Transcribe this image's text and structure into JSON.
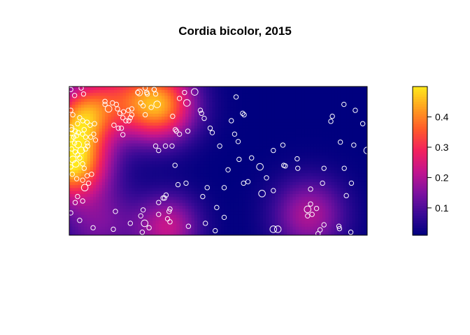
{
  "chart_data": {
    "type": "heatmap",
    "title": "Cordia bicolor, 2015",
    "xlabel": "",
    "ylabel": "",
    "xlim": [
      0,
      1000
    ],
    "ylim": [
      0,
      500
    ],
    "colorbar": {
      "range": [
        0.01,
        0.5
      ],
      "ticks": [
        0.1,
        0.2,
        0.3,
        0.4
      ],
      "tick_labels": [
        "0.1",
        "0.2",
        "0.3",
        "0.4"
      ],
      "colors": [
        "#00007f",
        "#3a0a96",
        "#7d12a0",
        "#c2158e",
        "#f2215e",
        "#ff5a2a",
        "#ffa020",
        "#ffe81c"
      ]
    },
    "intensity_hotspots": [
      {
        "x": 5,
        "y": 250,
        "value": 0.5,
        "spread": 85
      },
      {
        "x": 45,
        "y": 400,
        "value": 0.3,
        "spread": 70
      },
      {
        "x": 300,
        "y": 440,
        "value": 0.42,
        "spread": 85
      },
      {
        "x": 140,
        "y": 470,
        "value": 0.2,
        "spread": 90
      },
      {
        "x": 330,
        "y": 30,
        "value": 0.22,
        "spread": 75
      },
      {
        "x": 100,
        "y": 40,
        "value": 0.14,
        "spread": 90
      },
      {
        "x": 805,
        "y": 70,
        "value": 0.2,
        "spread": 85
      }
    ],
    "background_value": 0.01,
    "point_color": "#ffffff",
    "points": [
      [
        5,
        490,
        1
      ],
      [
        40,
        495,
        1
      ],
      [
        48,
        475,
        1
      ],
      [
        18,
        470,
        1
      ],
      [
        5,
        420,
        1
      ],
      [
        12,
        405,
        1
      ],
      [
        35,
        395,
        1
      ],
      [
        45,
        385,
        1
      ],
      [
        28,
        375,
        1
      ],
      [
        60,
        380,
        1
      ],
      [
        8,
        355,
        1
      ],
      [
        20,
        350,
        1
      ],
      [
        30,
        345,
        1
      ],
      [
        50,
        355,
        1
      ],
      [
        55,
        330,
        1
      ],
      [
        15,
        330,
        1
      ],
      [
        25,
        335,
        1
      ],
      [
        45,
        340,
        1
      ],
      [
        70,
        370,
        1
      ],
      [
        85,
        375,
        1
      ],
      [
        120,
        440,
        1
      ],
      [
        132,
        425,
        2
      ],
      [
        145,
        445,
        1
      ],
      [
        158,
        440,
        1
      ],
      [
        162,
        425,
        1
      ],
      [
        170,
        410,
        1
      ],
      [
        182,
        415,
        1
      ],
      [
        198,
        420,
        1
      ],
      [
        210,
        425,
        1
      ],
      [
        205,
        395,
        1
      ],
      [
        180,
        395,
        1
      ],
      [
        190,
        385,
        1
      ],
      [
        150,
        370,
        1
      ],
      [
        165,
        360,
        1
      ],
      [
        175,
        360,
        1
      ],
      [
        120,
        450,
        1
      ],
      [
        5,
        360,
        2
      ],
      [
        5,
        325,
        2
      ],
      [
        18,
        310,
        1
      ],
      [
        30,
        305,
        2
      ],
      [
        40,
        285,
        2
      ],
      [
        55,
        290,
        1
      ],
      [
        60,
        310,
        1
      ],
      [
        62,
        300,
        1
      ],
      [
        72,
        330,
        1
      ],
      [
        82,
        340,
        1
      ],
      [
        88,
        320,
        1
      ],
      [
        8,
        290,
        1
      ],
      [
        20,
        280,
        1
      ],
      [
        28,
        270,
        1
      ],
      [
        12,
        255,
        2
      ],
      [
        22,
        240,
        2
      ],
      [
        5,
        230,
        1
      ],
      [
        35,
        260,
        1
      ],
      [
        45,
        240,
        1
      ],
      [
        50,
        225,
        1
      ],
      [
        60,
        200,
        1
      ],
      [
        10,
        205,
        1
      ],
      [
        25,
        190,
        1
      ],
      [
        45,
        185,
        1
      ],
      [
        75,
        205,
        1
      ],
      [
        65,
        175,
        1
      ],
      [
        52,
        160,
        2
      ],
      [
        28,
        130,
        1
      ],
      [
        20,
        110,
        1
      ],
      [
        45,
        115,
        1
      ],
      [
        5,
        75,
        1
      ],
      [
        35,
        50,
        1
      ],
      [
        80,
        25,
        1
      ],
      [
        148,
        20,
        1
      ],
      [
        205,
        40,
        1
      ],
      [
        253,
        40,
        2
      ],
      [
        245,
        10,
        1
      ],
      [
        268,
        25,
        1
      ],
      [
        240,
        65,
        1
      ],
      [
        300,
        70,
        1
      ],
      [
        330,
        55,
        1
      ],
      [
        338,
        45,
        1
      ],
      [
        338,
        88,
        1
      ],
      [
        248,
        85,
        1
      ],
      [
        320,
        125,
        1
      ],
      [
        300,
        110,
        1
      ],
      [
        323,
        300,
        1
      ],
      [
        355,
        235,
        1
      ],
      [
        275,
        430,
        1
      ],
      [
        260,
        480,
        1
      ],
      [
        262,
        475,
        1
      ],
      [
        285,
        490,
        1
      ],
      [
        290,
        475,
        1
      ],
      [
        255,
        495,
        1
      ],
      [
        240,
        445,
        1
      ],
      [
        248,
        435,
        1
      ],
      [
        255,
        405,
        1
      ],
      [
        295,
        440,
        2
      ],
      [
        235,
        480,
        2
      ],
      [
        210,
        405,
        1
      ],
      [
        200,
        385,
        1
      ],
      [
        230,
        480,
        1
      ],
      [
        285,
        490,
        1
      ],
      [
        347,
        400,
        1
      ],
      [
        356,
        355,
        1
      ],
      [
        360,
        350,
        1
      ],
      [
        370,
        340,
        1
      ],
      [
        398,
        350,
        1
      ],
      [
        395,
        445,
        2
      ],
      [
        440,
        420,
        1
      ],
      [
        421,
        482,
        2
      ],
      [
        444,
        410,
        1
      ],
      [
        453,
        393,
        1
      ],
      [
        480,
        345,
        1
      ],
      [
        505,
        300,
        1
      ],
      [
        544,
        385,
        1
      ],
      [
        555,
        340,
        1
      ],
      [
        582,
        410,
        1
      ],
      [
        567,
        315,
        1
      ],
      [
        570,
        255,
        1
      ],
      [
        587,
        405,
        1
      ],
      [
        647,
        140,
        2
      ],
      [
        600,
        180,
        1
      ],
      [
        612,
        260,
        1
      ],
      [
        640,
        230,
        2
      ],
      [
        662,
        193,
        1
      ],
      [
        717,
        303,
        1
      ],
      [
        767,
        225,
        1
      ],
      [
        765,
        257,
        1
      ],
      [
        800,
        65,
        1
      ],
      [
        815,
        70,
        1
      ],
      [
        800,
        87,
        2
      ],
      [
        810,
        105,
        1
      ],
      [
        830,
        90,
        1
      ],
      [
        855,
        35,
        1
      ],
      [
        842,
        18,
        1
      ],
      [
        905,
        30,
        1
      ],
      [
        907,
        22,
        1
      ],
      [
        945,
        10,
        1
      ],
      [
        855,
        225,
        1
      ],
      [
        878,
        383,
        1
      ],
      [
        910,
        313,
        1
      ],
      [
        923,
        225,
        1
      ],
      [
        947,
        175,
        1
      ],
      [
        955,
        303,
        1
      ],
      [
        930,
        133,
        1
      ],
      [
        960,
        420,
        1
      ],
      [
        883,
        400,
        1
      ],
      [
        810,
        155,
        1
      ],
      [
        850,
        175,
        1
      ],
      [
        985,
        375,
        1
      ],
      [
        922,
        440,
        1
      ],
      [
        490,
        15,
        1
      ],
      [
        495,
        93,
        1
      ],
      [
        520,
        160,
        1
      ],
      [
        533,
        220,
        1
      ],
      [
        457,
        40,
        1
      ],
      [
        448,
        130,
        1
      ],
      [
        300,
        285,
        1
      ],
      [
        180,
        338,
        1
      ],
      [
        290,
        300,
        1
      ],
      [
        345,
        300,
        1
      ],
      [
        365,
        170,
        1
      ],
      [
        325,
        135,
        1
      ],
      [
        315,
        125,
        1
      ],
      [
        392,
        175,
        1
      ],
      [
        463,
        160,
        1
      ],
      [
        685,
        285,
        1
      ],
      [
        685,
        150,
        1
      ],
      [
        720,
        235,
        1
      ],
      [
        725,
        233,
        1
      ],
      [
        1000,
        285,
        2
      ],
      [
        835,
        5,
        1
      ],
      [
        685,
        20,
        2
      ],
      [
        700,
        20,
        2
      ],
      [
        585,
        175,
        1
      ],
      [
        520,
        60,
        1
      ],
      [
        560,
        465,
        1
      ],
      [
        370,
        460,
        1
      ],
      [
        387,
        480,
        1
      ],
      [
        155,
        80,
        1
      ],
      [
        335,
        80,
        1
      ],
      [
        400,
        30,
        1
      ],
      [
        473,
        360,
        1
      ]
    ]
  }
}
